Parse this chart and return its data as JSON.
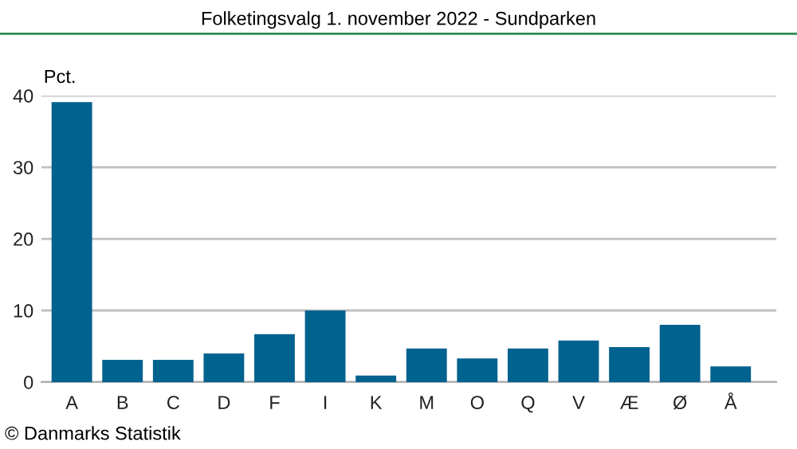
{
  "chart_data": {
    "type": "bar",
    "title": "Folketingsvalg 1. november 2022 - Sundparken",
    "ylabel": "Pct.",
    "categories": [
      "A",
      "B",
      "C",
      "D",
      "F",
      "I",
      "K",
      "M",
      "O",
      "Q",
      "V",
      "Æ",
      "Ø",
      "Å"
    ],
    "values": [
      39.1,
      3.1,
      3.1,
      4.0,
      6.7,
      10.0,
      0.9,
      4.7,
      3.3,
      4.7,
      5.8,
      4.9,
      8.0,
      2.2
    ],
    "color": "#00628f",
    "ylim": [
      0,
      40
    ],
    "yticks": [
      0,
      10,
      20,
      30,
      40
    ],
    "grid": "y",
    "annotations": [
      "© Danmarks Statistik"
    ]
  }
}
